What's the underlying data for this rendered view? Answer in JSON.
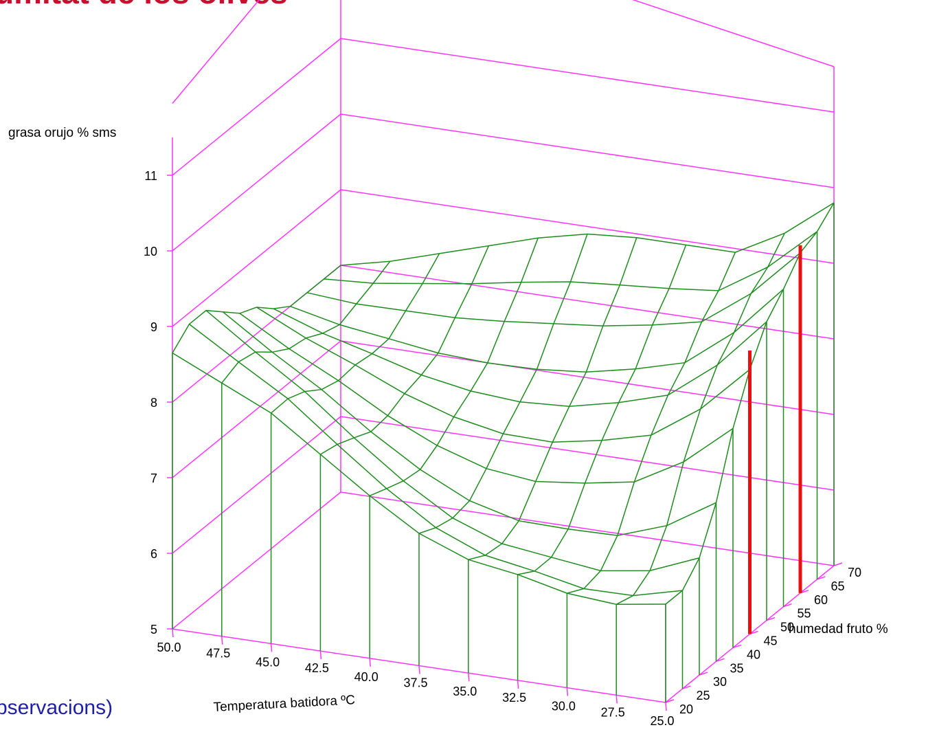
{
  "slide": {
    "title": "umitat de los olives",
    "footer": "bservacions)",
    "title_color": "#c8102e",
    "footer_color": "#1f1fa8"
  },
  "chart_data": {
    "type": "surface3d",
    "title": "",
    "xlabel": "Temperatura batidora ºC",
    "ylabel": "humedad fruto %",
    "zlabel": "grasa orujo % sms",
    "x_ticks": [
      "50.0",
      "47.5",
      "45.0",
      "42.5",
      "40.0",
      "37.5",
      "35.0",
      "32.5",
      "30.0",
      "27.5",
      "25.0"
    ],
    "y_ticks": [
      "20",
      "25",
      "30",
      "35",
      "40",
      "45",
      "50",
      "55",
      "60",
      "65",
      "70"
    ],
    "z_ticks": [
      "5",
      "6",
      "7",
      "8",
      "9",
      "10",
      "11"
    ],
    "x": [
      50.0,
      47.5,
      45.0,
      42.5,
      40.0,
      37.5,
      35.0,
      32.5,
      30.0,
      27.5,
      25.0
    ],
    "y": [
      20,
      25,
      30,
      35,
      40,
      45,
      50,
      55,
      60,
      65,
      70
    ],
    "z_front_edge_y20": [
      8.65,
      8.35,
      8.05,
      7.6,
      7.15,
      6.75,
      6.5,
      6.4,
      6.25,
      6.2,
      6.3
    ],
    "z_right_edge_x25": [
      6.3,
      6.3,
      6.55,
      7.1,
      7.9,
      8.5,
      8.95,
      9.2,
      9.5,
      9.6,
      9.8
    ],
    "z_back_edge_y70": [
      8.0,
      8.15,
      8.35,
      8.55,
      8.75,
      8.9,
      8.95,
      8.95,
      8.95,
      9.3,
      9.8
    ],
    "z_left_edge_x50": [
      8.65,
      8.85,
      8.85,
      8.65,
      8.45,
      8.35,
      8.15,
      8.0,
      8.0,
      8.0,
      8.0
    ],
    "observations": [
      {
        "x": 25.0,
        "y": 45,
        "z": 8.75
      },
      {
        "x": 25.0,
        "y": 60,
        "z": 9.6
      }
    ],
    "zlim": [
      5,
      11.6
    ],
    "colors": {
      "box": "#ff33ff",
      "surface": "#1e8c1e",
      "observation": "#e81010"
    }
  }
}
